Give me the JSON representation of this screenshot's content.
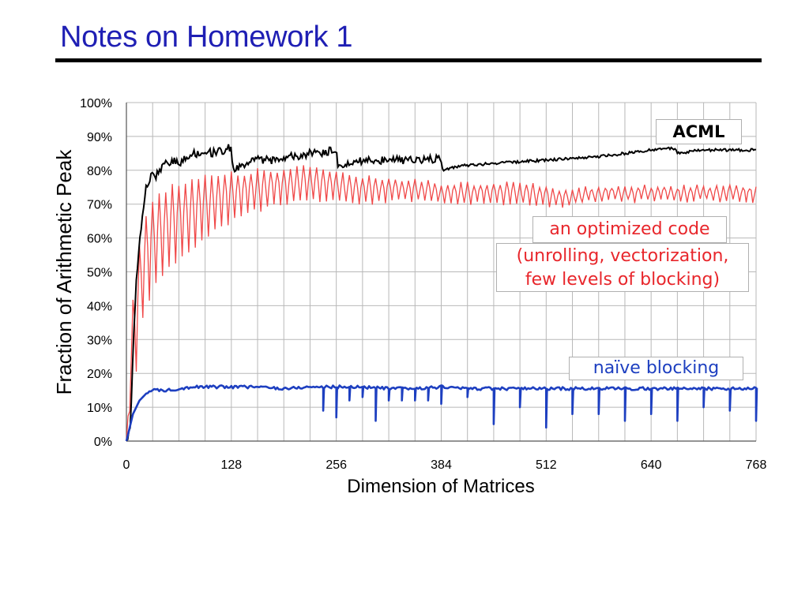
{
  "slide": {
    "title": "Notes on Homework 1"
  },
  "chart_data": {
    "type": "line",
    "title": "",
    "xlabel": "Dimension of Matrices",
    "ylabel": "Fraction of Arithmetic Peak",
    "xlim": [
      0,
      768
    ],
    "ylim": [
      0,
      100
    ],
    "x_ticks": [
      0,
      128,
      256,
      384,
      512,
      640,
      768
    ],
    "y_ticks": [
      0,
      10,
      20,
      30,
      40,
      50,
      60,
      70,
      80,
      90,
      100
    ],
    "y_tick_labels": [
      "0%",
      "10%",
      "20%",
      "30%",
      "40%",
      "50%",
      "60%",
      "70%",
      "80%",
      "90%",
      "100%"
    ],
    "grid": true,
    "annotations": {
      "acml": "ACML",
      "optimized_line1": "an optimized code",
      "optimized_line2a": "(unrolling, vectorization,",
      "optimized_line2b": "few levels of blocking)",
      "naive": "naïve blocking"
    },
    "series": [
      {
        "color": "#000000",
        "x": [
          0,
          5,
          8,
          12,
          16,
          20,
          24,
          28,
          32,
          36,
          40,
          48,
          56,
          64,
          72,
          80,
          88,
          96,
          104,
          112,
          120,
          128,
          130,
          136,
          144,
          160,
          176,
          192,
          208,
          224,
          240,
          250,
          256,
          258,
          272,
          288,
          304,
          320,
          336,
          352,
          368,
          383,
          386,
          400,
          416,
          448,
          480,
          512,
          544,
          576,
          608,
          640,
          670,
          672,
          700,
          736,
          768
        ],
        "y": [
          0,
          3,
          25,
          48,
          58,
          68,
          75,
          77,
          79,
          78,
          80,
          82,
          83,
          82,
          84,
          85,
          85,
          86,
          85,
          86,
          86,
          87,
          80,
          81,
          82,
          83,
          83,
          84,
          84,
          85,
          85,
          86,
          85,
          81,
          82,
          83,
          83,
          83,
          83,
          83,
          83,
          84,
          80,
          81,
          81.5,
          82,
          82.5,
          83,
          83.5,
          84,
          85,
          86,
          86.5,
          85,
          86,
          86,
          86
        ]
      },
      {
        "color": "#f04848",
        "x": [
          0,
          8,
          12,
          16,
          20,
          24,
          32,
          40,
          48,
          56,
          64,
          80,
          96,
          112,
          128,
          144,
          160,
          192,
          224,
          256,
          288,
          320,
          352,
          384,
          416,
          448,
          480,
          512,
          544,
          576,
          608,
          640,
          672,
          704,
          736,
          768
        ],
        "y": [
          0,
          30,
          35,
          43,
          50,
          53,
          58,
          60,
          62,
          64,
          65,
          67,
          69,
          71,
          72,
          73,
          74,
          75,
          76,
          75,
          74,
          74,
          74,
          73,
          73,
          73,
          73,
          72,
          72,
          73,
          73,
          73,
          73,
          73,
          73,
          73
        ],
        "amplitude": [
          0,
          12,
          14,
          14,
          14,
          14,
          13,
          13,
          12,
          12,
          11,
          10,
          9,
          8,
          7,
          6,
          6,
          5,
          5,
          4,
          4,
          3,
          3,
          3,
          3,
          3,
          3,
          3,
          2,
          2,
          2,
          2,
          2,
          2,
          2,
          2
        ]
      },
      {
        "color": "#1d3fc0",
        "x": [
          0,
          4,
          8,
          12,
          16,
          20,
          24,
          32,
          40,
          48,
          64,
          80,
          96,
          112,
          128,
          160,
          192,
          224,
          256,
          288,
          320,
          352,
          384,
          416,
          448,
          480,
          512,
          544,
          576,
          608,
          640,
          672,
          704,
          736,
          768
        ],
        "y": [
          0,
          4,
          8,
          10,
          12,
          13,
          14,
          15,
          15,
          15,
          15.5,
          16,
          16,
          16,
          16,
          16,
          15.5,
          16,
          16,
          16,
          15.5,
          15.5,
          16,
          15.5,
          15.5,
          15.5,
          15.5,
          15.5,
          15.5,
          15.5,
          15.5,
          15.5,
          15.5,
          15.5,
          15.5
        ],
        "dips": [
          {
            "x": 240,
            "y": 9
          },
          {
            "x": 256,
            "y": 7
          },
          {
            "x": 272,
            "y": 12
          },
          {
            "x": 288,
            "y": 13
          },
          {
            "x": 304,
            "y": 6
          },
          {
            "x": 320,
            "y": 12
          },
          {
            "x": 336,
            "y": 12
          },
          {
            "x": 352,
            "y": 12
          },
          {
            "x": 368,
            "y": 12
          },
          {
            "x": 384,
            "y": 11
          },
          {
            "x": 416,
            "y": 13
          },
          {
            "x": 448,
            "y": 5
          },
          {
            "x": 480,
            "y": 10
          },
          {
            "x": 512,
            "y": 4
          },
          {
            "x": 544,
            "y": 8
          },
          {
            "x": 576,
            "y": 8
          },
          {
            "x": 608,
            "y": 6
          },
          {
            "x": 640,
            "y": 8
          },
          {
            "x": 672,
            "y": 6
          },
          {
            "x": 704,
            "y": 10
          },
          {
            "x": 736,
            "y": 9
          },
          {
            "x": 768,
            "y": 6
          }
        ]
      }
    ]
  }
}
